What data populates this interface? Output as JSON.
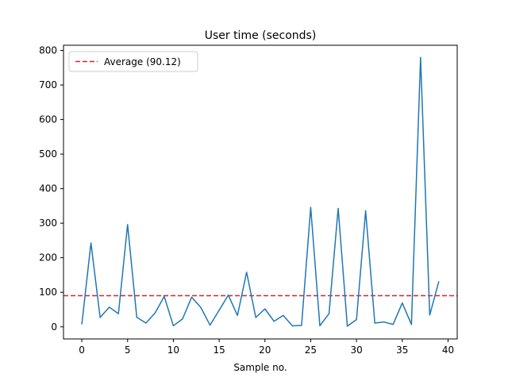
{
  "chart_data": {
    "type": "line",
    "title": "User time (seconds)",
    "xlabel": "Sample no.",
    "ylabel": "",
    "xlim": [
      -2,
      41
    ],
    "ylim": [
      -35,
      815
    ],
    "xticks": [
      0,
      5,
      10,
      15,
      20,
      25,
      30,
      35,
      40
    ],
    "yticks": [
      0,
      100,
      200,
      300,
      400,
      500,
      600,
      700,
      800
    ],
    "grid": false,
    "legend_position": "upper-left",
    "series": [
      {
        "color": "#1f77b4",
        "x": [
          0,
          1,
          2,
          3,
          4,
          5,
          6,
          7,
          8,
          9,
          10,
          11,
          12,
          13,
          14,
          15,
          16,
          17,
          18,
          19,
          20,
          21,
          22,
          23,
          24,
          25,
          26,
          27,
          28,
          29,
          30,
          31,
          32,
          33,
          34,
          35,
          36,
          37,
          38,
          39
        ],
        "y": [
          7,
          243,
          27,
          57,
          38,
          296,
          28,
          11,
          40,
          88,
          3,
          23,
          86,
          56,
          5,
          48,
          92,
          33,
          158,
          27,
          52,
          16,
          33,
          3,
          4,
          346,
          3,
          38,
          343,
          2,
          21,
          336,
          11,
          14,
          7,
          69,
          7,
          780,
          34,
          132
        ]
      }
    ],
    "reference_lines": [
      {
        "orientation": "horizontal",
        "value": 90.12,
        "name": "Average (90.12)",
        "color": "#d62728",
        "style": "dashed"
      }
    ]
  }
}
